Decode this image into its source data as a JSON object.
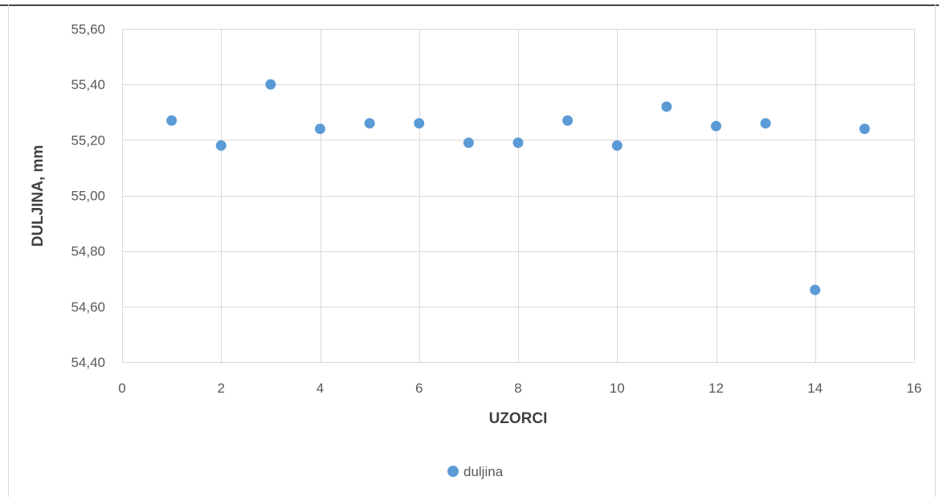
{
  "chart_data": {
    "type": "scatter",
    "title": "",
    "xlabel": "UZORCI",
    "ylabel": "DULJINA, mm",
    "xlim": [
      0,
      16
    ],
    "ylim": [
      54.4,
      55.6
    ],
    "x_ticks": [
      "0",
      "2",
      "4",
      "6",
      "8",
      "10",
      "12",
      "14",
      "16"
    ],
    "y_ticks": [
      "54,40",
      "54,60",
      "54,80",
      "55,00",
      "55,20",
      "55,40",
      "55,60"
    ],
    "grid": true,
    "legend_position": "bottom",
    "series": [
      {
        "name": "duljina",
        "color": "#5b9bd5",
        "x": [
          1,
          2,
          3,
          4,
          5,
          6,
          7,
          8,
          9,
          10,
          11,
          12,
          13,
          14,
          15
        ],
        "y": [
          55.27,
          55.18,
          55.4,
          55.24,
          55.26,
          55.26,
          55.19,
          55.19,
          55.27,
          55.18,
          55.32,
          55.25,
          55.26,
          54.66,
          55.24
        ]
      }
    ]
  }
}
